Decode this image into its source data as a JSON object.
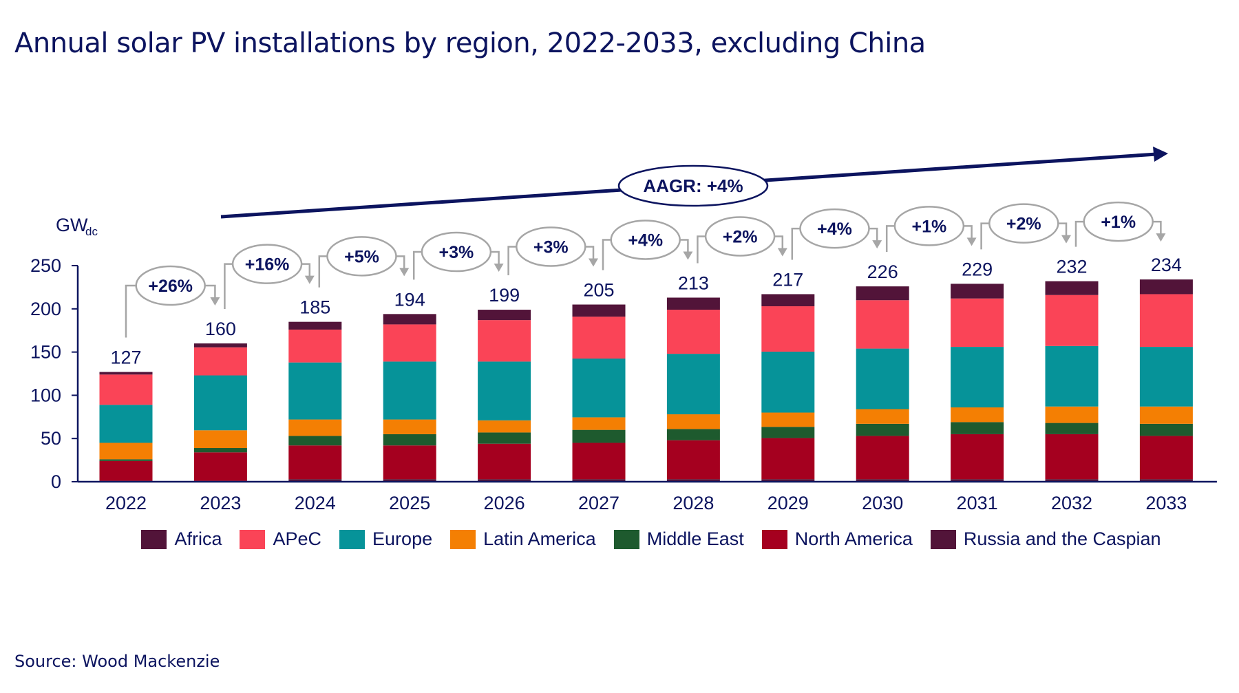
{
  "chart_data": {
    "type": "bar",
    "stacked": true,
    "title": "Annual solar PV installations by region, 2022-2033, excluding China",
    "ylabel": "GW",
    "ylabel_subscript": "dc",
    "ylim": [
      0,
      250
    ],
    "yticks": [
      "0",
      "50",
      "100",
      "150",
      "200",
      "250"
    ],
    "grid": false,
    "legend_position": "bottom",
    "categories": [
      "2022",
      "2023",
      "2024",
      "2025",
      "2026",
      "2027",
      "2028",
      "2029",
      "2030",
      "2031",
      "2032",
      "2033"
    ],
    "totals": [
      "127",
      "160",
      "185",
      "194",
      "199",
      "205",
      "213",
      "217",
      "226",
      "229",
      "232",
      "234"
    ],
    "growth_labels": [
      "+26%",
      "+16%",
      "+5%",
      "+3%",
      "+3%",
      "+4%",
      "+2%",
      "+4%",
      "+1%",
      "+2%",
      "+1%"
    ],
    "aagr_label": "AAGR: +4%",
    "series": [
      {
        "name": "Russia and the Caspian",
        "color": "#521439",
        "values": [
          1,
          1,
          3,
          3,
          3,
          3,
          3,
          3,
          3,
          3,
          3,
          3
        ]
      },
      {
        "name": "North America",
        "color": "#a5001f",
        "values": [
          23,
          33,
          39,
          39,
          41,
          42,
          45,
          47.5,
          50,
          52,
          52,
          50
        ]
      },
      {
        "name": "Middle East",
        "color": "#1e5a2e",
        "values": [
          2,
          5,
          11,
          13,
          13,
          15,
          13,
          13,
          14,
          14,
          13,
          14
        ]
      },
      {
        "name": "Latin America",
        "color": "#f47f03",
        "values": [
          19,
          20.5,
          19,
          17,
          14,
          14.5,
          17,
          16.5,
          17,
          17,
          19,
          20
        ]
      },
      {
        "name": "Europe",
        "color": "#069399",
        "values": [
          44,
          63.5,
          66,
          67,
          68,
          68,
          70,
          70.5,
          70,
          70,
          70,
          69
        ]
      },
      {
        "name": "APeC",
        "color": "#fa4457",
        "values": [
          35,
          32.5,
          38,
          43,
          48,
          48.5,
          51,
          52.5,
          56,
          56,
          59,
          61
        ]
      },
      {
        "name": "Africa",
        "color": "#521439",
        "values": [
          3,
          4.5,
          9,
          12,
          12,
          14,
          14,
          14,
          16,
          17,
          16,
          17
        ]
      }
    ],
    "legend_order": [
      "Africa",
      "APeC",
      "Europe",
      "Latin America",
      "Middle East",
      "North America",
      "Russia and the Caspian"
    ]
  },
  "source": "Source: Wood Mackenzie",
  "colors": {
    "text": "#0c145f",
    "axis": "#0c145f",
    "bracket": "#a6a6a6"
  }
}
